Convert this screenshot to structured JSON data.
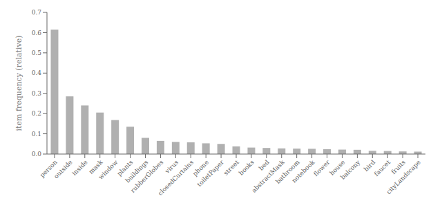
{
  "chart_data": {
    "type": "bar",
    "categories": [
      "person",
      "outside",
      "inside",
      "mask",
      "window",
      "plants",
      "buildings",
      "rubberGlobes",
      "virus",
      "closedCurtains",
      "phone",
      "toiletPaper",
      "street",
      "books",
      "bed",
      "abstractMask",
      "bathroom",
      "notebook",
      "flower",
      "house",
      "balcony",
      "bird",
      "faucet",
      "fruits",
      "cityLandscape"
    ],
    "values": [
      0.615,
      0.285,
      0.24,
      0.205,
      0.168,
      0.135,
      0.08,
      0.065,
      0.06,
      0.058,
      0.053,
      0.05,
      0.038,
      0.032,
      0.03,
      0.028,
      0.027,
      0.026,
      0.024,
      0.022,
      0.021,
      0.016,
      0.015,
      0.013,
      0.012
    ],
    "color": "#b0b0b0",
    "ylabel": "item frequency (relative)",
    "ylim": [
      0,
      0.7
    ],
    "yticks": [
      {
        "value": 0,
        "label": "0.0"
      },
      0.1,
      0.2,
      0.3,
      0.4,
      0.5,
      0.6,
      0.7
    ],
    "grid": false
  }
}
